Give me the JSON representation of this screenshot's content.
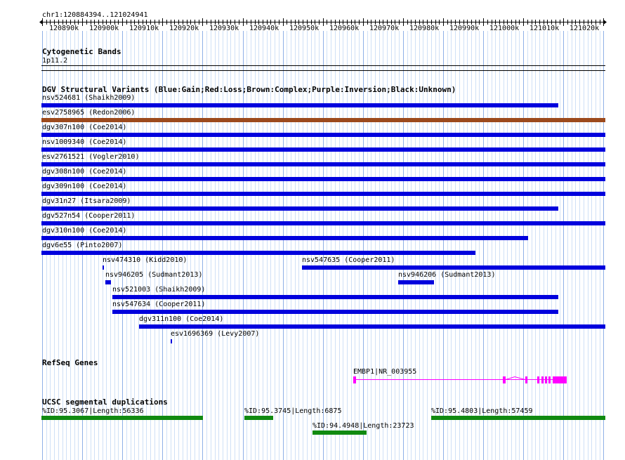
{
  "ruler": {
    "location": "chr1:120884394..121024941",
    "ticks": [
      "120890k",
      "120900k",
      "120910k",
      "120920k",
      "120930k",
      "120940k",
      "120950k",
      "120960k",
      "120970k",
      "120980k",
      "120990k",
      "121000k",
      "121010k",
      "121020k"
    ]
  },
  "cytobands": {
    "title": "Cytogenetic Bands",
    "band": "1p11.2"
  },
  "dgv": {
    "title": "DGV Structural Variants (Blue:Gain;Red:Loss;Brown:Complex;Purple:Inversion;Black:Unknown)",
    "colors": {
      "gain": "#0000dd",
      "complex": "#9c4a1d"
    },
    "variants": [
      {
        "label": "nsv524681 (Shaikh2009)",
        "type": "gain"
      },
      {
        "label": "esv2758965 (Redon2006)",
        "type": "complex"
      },
      {
        "label": "dgv307n100 (Coe2014)",
        "type": "gain"
      },
      {
        "label": "nsv1009340 (Coe2014)",
        "type": "gain"
      },
      {
        "label": "esv2761521 (Vogler2010)",
        "type": "gain"
      },
      {
        "label": "dgv308n100 (Coe2014)",
        "type": "gain"
      },
      {
        "label": "dgv309n100 (Coe2014)",
        "type": "gain"
      },
      {
        "label": "dgv31n27 (Itsara2009)",
        "type": "gain"
      },
      {
        "label": "dgv527n54 (Cooper2011)",
        "type": "gain"
      },
      {
        "label": "dgv310n100 (Coe2014)",
        "type": "gain"
      },
      {
        "label": "dgv6e55 (Pinto2007)",
        "type": "gain"
      },
      {
        "label": "nsv474310 (Kidd2010)",
        "type": "gain"
      },
      {
        "label": "nsv547635 (Cooper2011)",
        "type": "gain"
      },
      {
        "label": "nsv946205 (Sudmant2013)",
        "type": "gain"
      },
      {
        "label": "nsv946206 (Sudmant2013)",
        "type": "gain"
      },
      {
        "label": "nsv521003 (Shaikh2009)",
        "type": "gain"
      },
      {
        "label": "nsv547634 (Cooper2011)",
        "type": "gain"
      },
      {
        "label": "dgv311n100 (Coe2014)",
        "type": "gain"
      },
      {
        "label": "esv1696369 (Levy2007)",
        "type": "gain"
      }
    ]
  },
  "refseq": {
    "title": "RefSeq Genes",
    "gene_label": "EMBP1|NR_003955",
    "color": "#ff00ff"
  },
  "segdups": {
    "title": "UCSC segmental duplications",
    "color": "#108a10",
    "items": [
      {
        "label": "%ID:95.3067|Length:56336"
      },
      {
        "label": "%ID:95.3745|Length:6875"
      },
      {
        "label": "%ID:95.4803|Length:57459"
      },
      {
        "label": "%ID:94.4948|Length:23723"
      }
    ]
  }
}
